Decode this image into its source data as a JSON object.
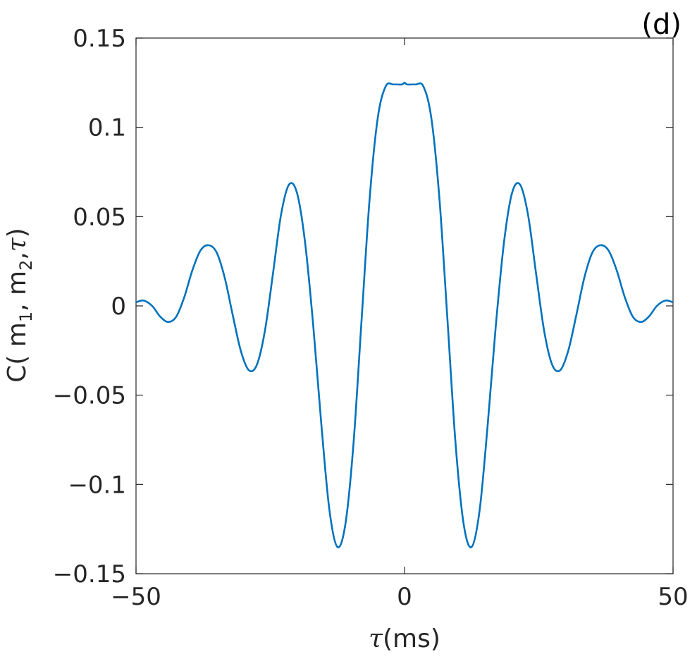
{
  "panel_label": "(d)",
  "chart_data": {
    "type": "line",
    "xlabel": "τ(ms)",
    "xlabel_parts": {
      "symbol": "τ",
      "unit": "(ms)"
    },
    "ylabel": "C( m1, m2,τ)",
    "ylabel_parts": {
      "open": "C( m",
      "sub1": "1",
      "mid": ", m",
      "sub2": "2",
      "sep": ",",
      "symbol": "τ",
      "close": ")"
    },
    "xlim": [
      -50,
      50
    ],
    "ylim": [
      -0.15,
      0.15
    ],
    "xticks": [
      -50,
      0,
      50
    ],
    "xtick_labels": [
      "−50",
      "0",
      "50"
    ],
    "yticks": [
      0.15,
      0.1,
      0.05,
      0,
      -0.05,
      -0.1,
      -0.15
    ],
    "ytick_labels": [
      "0.15",
      "0.1",
      "0.05",
      "0",
      "−0.05",
      "−0.1",
      "−0.15"
    ],
    "grid": false,
    "series": [
      {
        "color": "#0072BD",
        "x": [
          -50,
          -48.6,
          -47,
          -45.5,
          -44,
          -42.5,
          -41,
          -39.5,
          -38,
          -36.5,
          -35,
          -33.5,
          -32,
          -30.5,
          -29,
          -27.5,
          -26,
          -24.5,
          -23,
          -21.5,
          -20,
          -18.5,
          -17,
          -15.5,
          -14,
          -12.5,
          -11,
          -9.5,
          -8,
          -6.5,
          -5,
          -3.5,
          -2,
          -0.5,
          0,
          0.5,
          2,
          3.5,
          5,
          6.5,
          8,
          9.5,
          11,
          12.5,
          14,
          15.5,
          17,
          18.5,
          20,
          21.5,
          23,
          24.5,
          26,
          27.5,
          29,
          30.5,
          32,
          33.5,
          35,
          36.5,
          38,
          39.5,
          41,
          42.5,
          44,
          45.5,
          47,
          48.6,
          50
        ],
        "y": [
          0.002,
          0.003,
          0.0,
          -0.006,
          -0.009,
          -0.006,
          0.005,
          0.02,
          0.031,
          0.034,
          0.03,
          0.016,
          -0.005,
          -0.025,
          -0.036,
          -0.033,
          -0.014,
          0.018,
          0.051,
          0.068,
          0.063,
          0.035,
          -0.011,
          -0.066,
          -0.114,
          -0.135,
          -0.122,
          -0.077,
          -0.008,
          0.06,
          0.105,
          0.123,
          0.124,
          0.124,
          0.125,
          0.124,
          0.124,
          0.123,
          0.105,
          0.06,
          -0.008,
          -0.077,
          -0.122,
          -0.135,
          -0.114,
          -0.066,
          -0.011,
          0.035,
          0.063,
          0.068,
          0.051,
          0.018,
          -0.014,
          -0.033,
          -0.036,
          -0.025,
          -0.005,
          0.016,
          0.03,
          0.034,
          0.031,
          0.02,
          0.005,
          -0.006,
          -0.009,
          -0.006,
          0.0,
          0.003,
          0.002
        ]
      }
    ]
  }
}
